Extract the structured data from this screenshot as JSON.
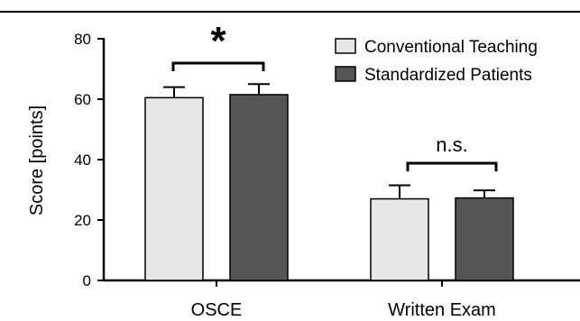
{
  "chart_data": {
    "type": "bar",
    "categories": [
      "OSCE",
      "Written Exam"
    ],
    "series": [
      {
        "name": "Conventional Teaching",
        "values": [
          60.5,
          27.0
        ],
        "errors": [
          3.5,
          4.5
        ],
        "color": "#e6e6e6"
      },
      {
        "name": "Standardized Patients",
        "values": [
          61.5,
          27.3
        ],
        "errors": [
          3.5,
          2.5
        ],
        "color": "#555555"
      }
    ],
    "ylabel": "Score [points]",
    "xlabel": "",
    "ylim": [
      0,
      80
    ],
    "yticks": [
      "0",
      "20",
      "40",
      "60",
      "80"
    ],
    "significance": [
      "*",
      "n.s."
    ],
    "legend_position": "top-right",
    "grid": false
  }
}
